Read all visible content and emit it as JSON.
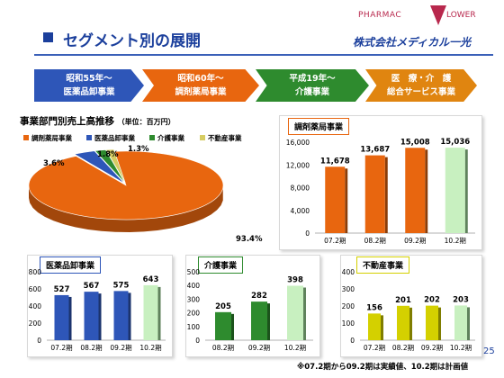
{
  "header": {
    "title": "セグメント別の展開",
    "logo_left": "PHARMAC",
    "logo_right": "LOWER",
    "company": "株式会社メディカル一光"
  },
  "timeline": [
    {
      "era": "昭和55年〜",
      "business": "医薬品卸事業",
      "color": "#2e56b8"
    },
    {
      "era": "昭和60年〜",
      "business": "調剤薬局事業",
      "color": "#e8660f"
    },
    {
      "era": "平成19年〜",
      "business": "介護事業",
      "color": "#2e8b2e"
    },
    {
      "era": "医　療・介　護",
      "business": "総合サービス事業",
      "color": "#e08510"
    }
  ],
  "pie_section": {
    "title": "事業部門別売上高推移",
    "unit": "（単位：百万円）"
  },
  "panels": {
    "pharmacy": "調剤薬局事業",
    "wholesale": "医薬品卸事業",
    "care": "介護事業",
    "realestate": "不動産事業"
  },
  "footer": {
    "note": "※07.2期から09.2期は実績値、10.2期は計画値",
    "page": "25"
  },
  "chart_data": [
    {
      "type": "pie",
      "title": "事業部門別売上高推移",
      "unit": "（単位：百万円）",
      "labels": [
        "調剤薬局事業",
        "医薬品卸事業",
        "介護事業",
        "不動産事業"
      ],
      "values": [
        93.4,
        3.6,
        1.8,
        1.3
      ],
      "value_labels": [
        "93.4%",
        "3.6%",
        "1.8%",
        "1.3%"
      ],
      "colors": [
        "#e8660f",
        "#2e56b8",
        "#2e8b2e",
        "#d6cc62"
      ],
      "legend": "top"
    },
    {
      "type": "bar",
      "title": "調剤薬局事業",
      "categories": [
        "07.2期",
        "08.2期",
        "09.2期",
        "10.2期"
      ],
      "values": [
        11678,
        13687,
        15008,
        15036
      ],
      "value_labels": [
        "11,678",
        "13,687",
        "15,008",
        "15,036"
      ],
      "yticks": [
        "0",
        "4,000",
        "8,000",
        "12,000",
        "16,000"
      ],
      "ylim": [
        0,
        16000
      ],
      "color": "#e8660f",
      "plan_color": "#c8f0c0"
    },
    {
      "type": "bar",
      "title": "医薬品卸事業",
      "categories": [
        "07.2期",
        "08.2期",
        "09.2期",
        "10.2期"
      ],
      "values": [
        527,
        567,
        575,
        643
      ],
      "value_labels": [
        "527",
        "567",
        "575",
        "643"
      ],
      "yticks": [
        "0",
        "200",
        "400",
        "600",
        "800"
      ],
      "ylim": [
        0,
        800
      ],
      "color": "#2e56b8",
      "plan_color": "#c8f0c0"
    },
    {
      "type": "bar",
      "title": "介護事業",
      "categories": [
        "08.2期",
        "09.2期",
        "10.2期"
      ],
      "values": [
        205,
        282,
        398
      ],
      "value_labels": [
        "205",
        "282",
        "398"
      ],
      "yticks": [
        "0",
        "100",
        "200",
        "300",
        "400",
        "500"
      ],
      "ylim": [
        0,
        500
      ],
      "color": "#2e8b2e",
      "plan_color": "#c8f0c0"
    },
    {
      "type": "bar",
      "title": "不動産事業",
      "categories": [
        "07.2期",
        "08.2期",
        "09.2期",
        "10.2期"
      ],
      "values": [
        156,
        201,
        202,
        203
      ],
      "value_labels": [
        "156",
        "201",
        "202",
        "203"
      ],
      "yticks": [
        "0",
        "100",
        "200",
        "300",
        "400"
      ],
      "ylim": [
        0,
        400
      ],
      "color": "#d4d000",
      "plan_color": "#c8f0c0"
    }
  ]
}
